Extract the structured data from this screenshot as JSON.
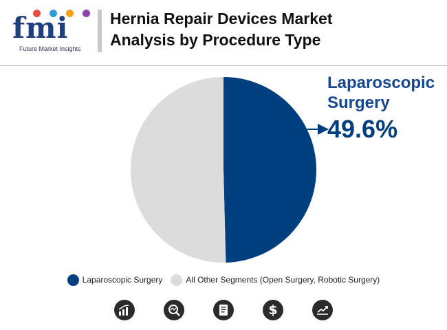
{
  "brand": {
    "logo_text": "fmi",
    "logo_subtitle": "Future Market Insights",
    "dot_colors": [
      "#e84c3d",
      "#2e9bd6",
      "#f2a31b",
      "#8e44ad"
    ]
  },
  "header": {
    "title_line1": "Hernia Repair Devices Market",
    "title_line2": "Analysis by Procedure Type"
  },
  "colors": {
    "laparoscopic": "#003f7f",
    "other": "#dcdcdc",
    "title_bar": "#c9c9c9"
  },
  "chart_data": {
    "type": "pie",
    "slices": [
      {
        "label": "Laparoscopic Surgery",
        "value": 49.6
      },
      {
        "label": "All Other Segments (Open Surgery, Robotic Surgery)",
        "value": 50.4
      }
    ],
    "callout": {
      "label": "Laparoscopic Surgery",
      "value": "49.6%"
    },
    "legend_position": "bottom"
  },
  "legend": {
    "item1": "Laparoscopic Surgery",
    "item2": "All Other Segments (Open Surgery, Robotic Surgery)"
  },
  "footer_icons": [
    "growth-chart-icon",
    "magnifier-chart-icon",
    "report-document-icon",
    "dollar-icon",
    "trend-line-icon"
  ]
}
